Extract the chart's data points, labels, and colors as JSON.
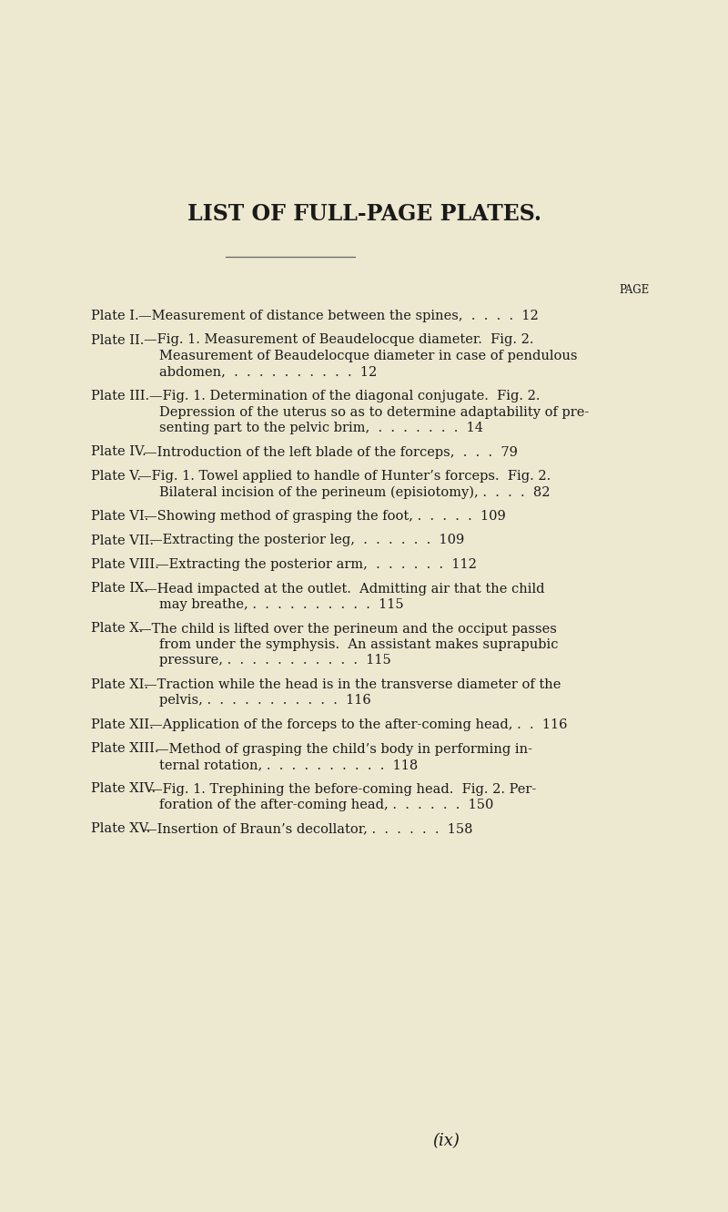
{
  "background_color": "#EDE8D0",
  "title": "LIST OF FULL-PAGE PLATES.",
  "page_label": "PAGE",
  "footer": "(ix)",
  "entries": [
    {
      "label": "Plate I.",
      "lines": [
        "Plate I.—Measurement of distance between the spines,  .  .  .  .  12"
      ]
    },
    {
      "label": "Plate II.",
      "lines": [
        "Plate II.—Fig. 1. Measurement of Beaudelocque diameter.  Fig. 2.",
        "Measurement of Beaudelocque diameter in case of pendulous",
        "abdomen,  .  .  .  .  .  .  .  .  .  .  12"
      ]
    },
    {
      "label": "Plate III.",
      "lines": [
        "Plate III.—Fig. 1. Determination of the diagonal conjugate.  Fig. 2.",
        "Depression of the uterus so as to determine adaptability of pre-",
        "senting part to the pelvic brim,  .  .  .  .  .  .  .  14"
      ]
    },
    {
      "label": "Plate IV.",
      "lines": [
        "Plate IV.—Introduction of the left blade of the forceps,  .  .  .  79"
      ]
    },
    {
      "label": "Plate V.",
      "lines": [
        "Plate V.—Fig. 1. Towel applied to handle of Hunter’s forceps.  Fig. 2.",
        "Bilateral incision of the perineum (episiotomy), .  .  .  .  82"
      ]
    },
    {
      "label": "Plate VI.",
      "lines": [
        "Plate VI.—Showing method of grasping the foot, .  .  .  .  .  109"
      ]
    },
    {
      "label": "Plate VII.",
      "lines": [
        "Plate VII.—Extracting the posterior leg,  .  .  .  .  .  .  109"
      ]
    },
    {
      "label": "Plate VIII.",
      "lines": [
        "Plate VIII.—Extracting the posterior arm,  .  .  .  .  .  .  112"
      ]
    },
    {
      "label": "Plate IX.",
      "lines": [
        "Plate IX.—Head impacted at the outlet.  Admitting air that the child",
        "may breathe, .  .  .  .  .  .  .  .  .  .  115"
      ]
    },
    {
      "label": "Plate X.",
      "lines": [
        "Plate X.—The child is lifted over the perineum and the occiput passes",
        "from under the symphysis.  An assistant makes suprapubic",
        "pressure, .  .  .  .  .  .  .  .  .  .  .  115"
      ]
    },
    {
      "label": "Plate XI.",
      "lines": [
        "Plate XI.—Traction while the head is in the transverse diameter of the",
        "pelvis, .  .  .  .  .  .  .  .  .  .  .  116"
      ]
    },
    {
      "label": "Plate XII.",
      "lines": [
        "Plate XII.—Application of the forceps to the after-coming head, .  .  116"
      ]
    },
    {
      "label": "Plate XIII.",
      "lines": [
        "Plate XIII.—Method of grasping the child’s body in performing in-",
        "ternal rotation, .  .  .  .  .  .  .  .  .  .  118"
      ]
    },
    {
      "label": "Plate XIV.",
      "lines": [
        "Plate XIV.—Fig. 1. Trephining the before-coming head.  Fig. 2. Per-",
        "foration of the after-coming head, .  .  .  .  .  .  150"
      ]
    },
    {
      "label": "Plate XV.",
      "lines": [
        "Plate XV.—Insertion of Braun’s decollator, .  .  .  .  .  .  158"
      ]
    }
  ]
}
